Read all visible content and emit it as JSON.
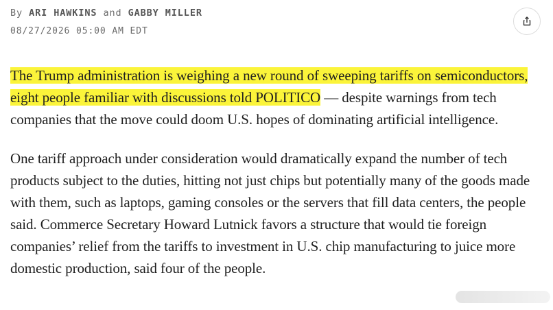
{
  "byline": {
    "prefix": "By",
    "author1": "ARI HAWKINS",
    "conjunction": "and",
    "author2": "GABBY MILLER"
  },
  "timestamp": "08/27/2026 05:00 AM EDT",
  "share_icon": "share-icon",
  "article": {
    "p1_highlight": "The Trump administration is weighing a new round of sweeping tariffs on semiconductors, eight people familiar with discussions told POLITICO",
    "p1_rest": " — despite warnings from tech companies that the move could doom U.S. hopes of dominating artificial intelligence.",
    "p2": "One tariff approach under consideration would dramatically expand the number of tech products subject to the duties, hitting not just chips but potentially many of the goods made with them, such as laptops, gaming consoles or the servers that fill data centers, the people said. Commerce Secretary Howard Lutnick favors a structure that would tie foreign companies’ relief from the tariffs to investment in U.S. chip manufacturing to juice more domestic production, said four of the people."
  },
  "colors": {
    "highlight": "#fbf43a",
    "meta_text": "#6b6b6b"
  }
}
